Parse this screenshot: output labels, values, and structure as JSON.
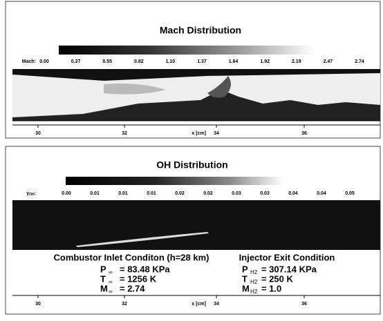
{
  "mach_panel": {
    "title": "Mach Distribution",
    "colorbar_label": "Mach:",
    "colorbar_ticks": [
      "0.00",
      "0.27",
      "0.55",
      "0.82",
      "1.10",
      "1.37",
      "1.64",
      "1.92",
      "2.19",
      "2.47",
      "2.74"
    ],
    "x_ticks": [
      "30",
      "32",
      "34",
      "36"
    ],
    "x_label": "x [cm]"
  },
  "oh_panel": {
    "title": "OH Distribution",
    "colorbar_label": {
      "symbol": "y",
      "subscript": "OH",
      "suffix": ":"
    },
    "colorbar_ticks": [
      "0.00",
      "0.01",
      "0.01",
      "0.01",
      "0.02",
      "0.02",
      "0.03",
      "0.03",
      "0.04",
      "0.04",
      "0.05"
    ],
    "x_ticks": [
      "30",
      "32",
      "34",
      "36"
    ],
    "x_label": "x [cm]",
    "inlet": {
      "title": "Combustor Inlet Conditon (h=28 km)",
      "rows": [
        {
          "symbol": "P",
          "subscript": "∞",
          "value": "= 83.48 KPa"
        },
        {
          "symbol": "T",
          "subscript": "∞",
          "value": "= 1256 K"
        },
        {
          "symbol": "M",
          "subscript": "∞",
          "value": "= 2.74"
        }
      ]
    },
    "injector": {
      "title": "Injector Exit Condition",
      "rows": [
        {
          "symbol": "P",
          "subscript": "H2",
          "value": "= 307.14 KPa"
        },
        {
          "symbol": "T",
          "subscript": "H2",
          "value": "= 250 K"
        },
        {
          "symbol": "M",
          "subscript": "H2",
          "value": "= 1.0"
        }
      ]
    }
  }
}
